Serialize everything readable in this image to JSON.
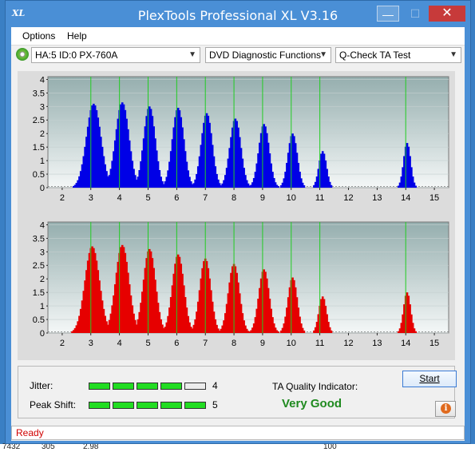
{
  "window": {
    "title": "PlexTools Professional XL V3.16",
    "icon_text": "XL",
    "min_label": "—",
    "max_label": "☐",
    "close_label": "✕"
  },
  "menu": {
    "items": [
      "Options",
      "Help"
    ]
  },
  "toolbar": {
    "drive": "HA:5 ID:0  PX-760A",
    "function": "DVD Diagnostic Functions",
    "test": "Q-Check TA Test"
  },
  "chart_data": [
    {
      "type": "bar",
      "name": "pits",
      "color": "#0000e6",
      "xlim": [
        1.5,
        15.5
      ],
      "ylim": [
        0,
        4.1
      ],
      "x_ticks": [
        "2",
        "3",
        "4",
        "5",
        "6",
        "7",
        "8",
        "9",
        "10",
        "11",
        "12",
        "13",
        "14",
        "15"
      ],
      "y_ticks": [
        "4",
        "3.5",
        "3",
        "2.5",
        "2",
        "1.5",
        "1",
        "0.5",
        "0"
      ],
      "reference_lines_x": [
        3,
        4,
        5,
        6,
        7,
        8,
        9,
        10,
        11,
        14
      ],
      "peaks": [
        {
          "center": 3.1,
          "height": 3.1,
          "width": 0.25
        },
        {
          "center": 4.1,
          "height": 3.15,
          "width": 0.23
        },
        {
          "center": 5.05,
          "height": 3.0,
          "width": 0.2
        },
        {
          "center": 6.05,
          "height": 2.95,
          "width": 0.2
        },
        {
          "center": 7.05,
          "height": 2.75,
          "width": 0.19
        },
        {
          "center": 8.05,
          "height": 2.55,
          "width": 0.19
        },
        {
          "center": 9.05,
          "height": 2.35,
          "width": 0.18
        },
        {
          "center": 10.05,
          "height": 2.0,
          "width": 0.16
        },
        {
          "center": 11.1,
          "height": 1.35,
          "width": 0.13
        },
        {
          "center": 14.05,
          "height": 1.65,
          "width": 0.12
        }
      ]
    },
    {
      "type": "bar",
      "name": "lands",
      "color": "#e60000",
      "xlim": [
        1.5,
        15.5
      ],
      "ylim": [
        0,
        4.1
      ],
      "x_ticks": [
        "2",
        "3",
        "4",
        "5",
        "6",
        "7",
        "8",
        "9",
        "10",
        "11",
        "12",
        "13",
        "14",
        "15"
      ],
      "y_ticks": [
        "4",
        "3.5",
        "3",
        "2.5",
        "2",
        "1.5",
        "1",
        "0.5",
        "0"
      ],
      "reference_lines_x": [
        3,
        4,
        5,
        6,
        7,
        8,
        9,
        10,
        11,
        14
      ],
      "peaks": [
        {
          "center": 3.05,
          "height": 3.2,
          "width": 0.25
        },
        {
          "center": 4.1,
          "height": 3.25,
          "width": 0.23
        },
        {
          "center": 5.05,
          "height": 3.1,
          "width": 0.21
        },
        {
          "center": 6.05,
          "height": 2.9,
          "width": 0.2
        },
        {
          "center": 7.0,
          "height": 2.75,
          "width": 0.19
        },
        {
          "center": 8.0,
          "height": 2.55,
          "width": 0.19
        },
        {
          "center": 9.05,
          "height": 2.35,
          "width": 0.18
        },
        {
          "center": 10.05,
          "height": 2.05,
          "width": 0.16
        },
        {
          "center": 11.1,
          "height": 1.35,
          "width": 0.13
        },
        {
          "center": 14.05,
          "height": 1.5,
          "width": 0.12
        }
      ]
    }
  ],
  "metrics": {
    "jitter": {
      "label": "Jitter:",
      "value": "4",
      "filled": 4,
      "total": 5
    },
    "peak_shift": {
      "label": "Peak Shift:",
      "value": "5",
      "filled": 5,
      "total": 5
    }
  },
  "ta": {
    "label": "TA Quality Indicator:",
    "value": "Very Good"
  },
  "buttons": {
    "start": "Start",
    "info": "i"
  },
  "status": {
    "text": "Ready"
  },
  "background_row": [
    "7432",
    "305",
    "2.98",
    "100"
  ],
  "colors": {
    "lit": "#22dd22",
    "unlit": "#ececec",
    "good": "#1f8a1f"
  }
}
